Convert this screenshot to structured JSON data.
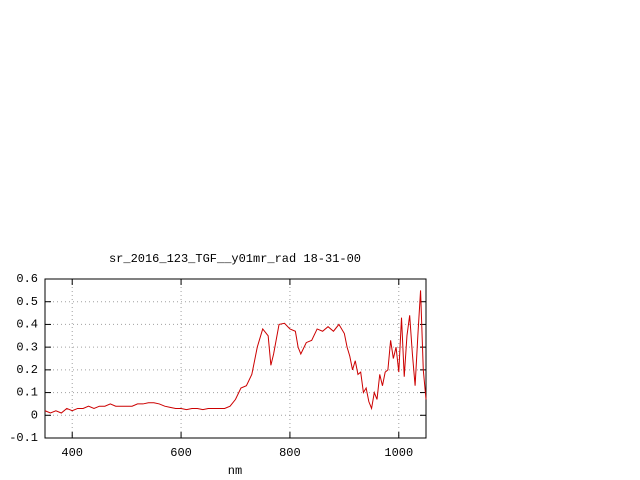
{
  "chart_data": {
    "type": "line",
    "title": "sr_2016_123_TGF__y01mr_rad 18-31-00",
    "x_label": "nm",
    "x": [
      350,
      360,
      370,
      380,
      390,
      400,
      410,
      420,
      430,
      440,
      450,
      460,
      470,
      480,
      490,
      500,
      510,
      520,
      530,
      540,
      550,
      560,
      570,
      580,
      590,
      600,
      610,
      620,
      630,
      640,
      650,
      660,
      670,
      680,
      690,
      700,
      710,
      720,
      730,
      740,
      750,
      760,
      765,
      770,
      780,
      790,
      800,
      810,
      815,
      820,
      830,
      840,
      850,
      860,
      870,
      880,
      890,
      900,
      905,
      910,
      915,
      920,
      925,
      930,
      935,
      940,
      945,
      950,
      955,
      960,
      965,
      970,
      975,
      980,
      985,
      990,
      995,
      1000,
      1005,
      1010,
      1015,
      1020,
      1025,
      1030,
      1035,
      1040,
      1045,
      1050
    ],
    "values": [
      0.02,
      0.01,
      0.02,
      0.01,
      0.03,
      0.02,
      0.03,
      0.03,
      0.04,
      0.03,
      0.04,
      0.04,
      0.05,
      0.04,
      0.04,
      0.04,
      0.04,
      0.05,
      0.05,
      0.055,
      0.055,
      0.05,
      0.04,
      0.035,
      0.03,
      0.03,
      0.025,
      0.03,
      0.03,
      0.025,
      0.03,
      0.03,
      0.03,
      0.03,
      0.04,
      0.07,
      0.12,
      0.13,
      0.18,
      0.3,
      0.38,
      0.35,
      0.22,
      0.27,
      0.4,
      0.405,
      0.38,
      0.37,
      0.3,
      0.27,
      0.32,
      0.33,
      0.38,
      0.37,
      0.39,
      0.37,
      0.4,
      0.36,
      0.3,
      0.26,
      0.2,
      0.24,
      0.18,
      0.19,
      0.1,
      0.12,
      0.06,
      0.03,
      0.1,
      0.07,
      0.18,
      0.13,
      0.19,
      0.2,
      0.33,
      0.25,
      0.3,
      0.19,
      0.43,
      0.17,
      0.35,
      0.44,
      0.27,
      0.13,
      0.35,
      0.55,
      0.2,
      0.07
    ],
    "color": "#cc0000",
    "xlim": [
      350,
      1050
    ],
    "xticks": [
      400,
      600,
      800,
      1000
    ],
    "ylim": [
      -0.1,
      0.6
    ],
    "yticks": [
      -0.1,
      0,
      0.1,
      0.2,
      0.3,
      0.4,
      0.5,
      0.6
    ],
    "grid": true
  }
}
